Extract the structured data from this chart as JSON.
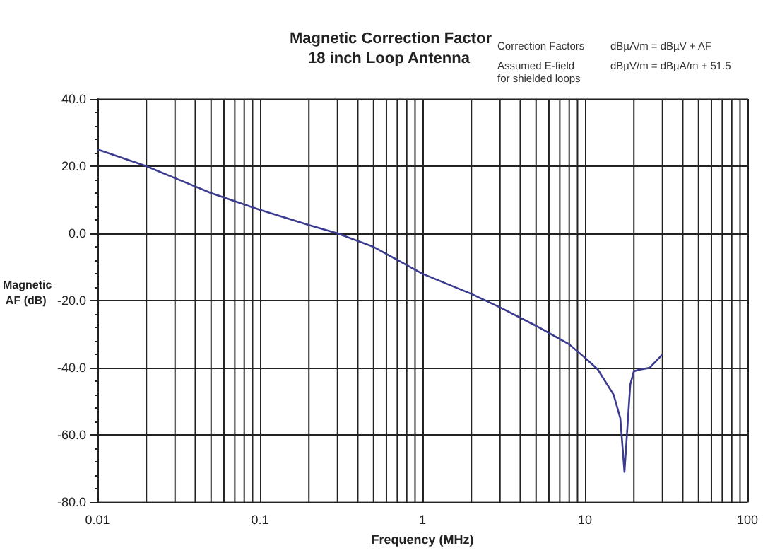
{
  "chart_data": {
    "type": "line",
    "title": "Magnetic Correction Factor",
    "subtitle": "18 inch Loop Antenna",
    "xlabel": "Frequency (MHz)",
    "ylabel": "Magnetic AF (dB)",
    "annotations": [
      "Correction Factors",
      "dBµA/m = dBµV + AF",
      "Assumed E-field for shielded loops",
      "dBµV/m = dBµA/m + 51.5"
    ],
    "x": [
      0.01,
      0.02,
      0.05,
      0.1,
      0.2,
      0.3,
      0.5,
      1,
      2,
      3,
      5,
      8,
      10,
      12,
      15,
      16.5,
      17.5,
      19,
      20,
      22,
      25,
      30
    ],
    "series": [
      {
        "color": "#3b3b8f",
        "values": [
          25,
          20,
          12,
          7,
          2.5,
          0,
          -4,
          -12,
          -18,
          -22,
          -27.5,
          -33,
          -37,
          -40.5,
          -48,
          -55,
          -71,
          -45,
          -41,
          -40.5,
          -40,
          -36
        ]
      }
    ],
    "xlim": [
      0.01,
      100
    ],
    "ylim": [
      -80,
      40
    ],
    "xticks": [
      0.01,
      0.1,
      1,
      10,
      100
    ],
    "yticks": [
      {
        "value": -80,
        "label": "-80.0"
      },
      {
        "value": -60,
        "label": "-60.0"
      },
      {
        "value": -40,
        "label": "-40.0"
      },
      {
        "value": -20,
        "label": "-20.0"
      },
      {
        "value": 0,
        "label": "0.0"
      },
      {
        "value": 20,
        "label": "20.0"
      },
      {
        "value": 40,
        "label": "40.0"
      }
    ],
    "log": "x",
    "grid": true,
    "marker": "none",
    "line_style": "solid"
  }
}
